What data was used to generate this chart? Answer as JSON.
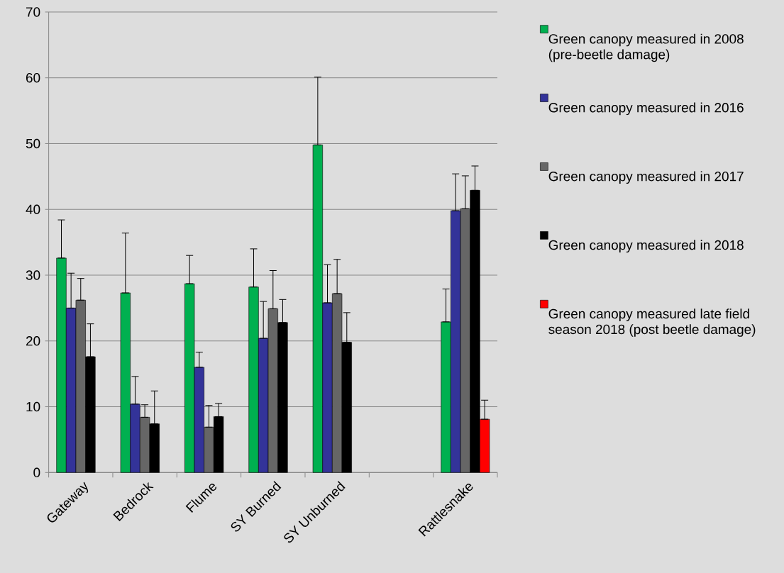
{
  "chart_data": {
    "type": "bar",
    "categories": [
      "Gateway",
      "Bedrock",
      "Flume",
      "SY Burned",
      "SY Unburned",
      null,
      "Rattlesnake"
    ],
    "series": [
      {
        "name": "Green canopy measured in 2008 (pre-beetle damage)",
        "color": "#00b050",
        "values": [
          32.6,
          27.3,
          28.7,
          28.2,
          49.8,
          null,
          22.9
        ],
        "errors": [
          [
            32.6,
            38.4
          ],
          [
            27.3,
            36.4
          ],
          [
            28.7,
            33.0
          ],
          [
            28.2,
            34.0
          ],
          [
            49.8,
            60.1
          ],
          null,
          [
            22.9,
            27.9
          ]
        ]
      },
      {
        "name": "Green canopy measured in 2016",
        "color": "#333399",
        "values": [
          25.0,
          10.4,
          16.0,
          20.4,
          25.8,
          null,
          39.8
        ],
        "errors": [
          [
            25.0,
            30.3
          ],
          [
            10.4,
            14.6
          ],
          [
            16.0,
            18.3
          ],
          [
            20.4,
            26.0
          ],
          [
            25.8,
            31.6
          ],
          null,
          [
            39.8,
            45.4
          ]
        ]
      },
      {
        "name": "Green canopy measured in 2017",
        "color": "#666666",
        "values": [
          26.2,
          8.4,
          6.9,
          24.9,
          27.2,
          null,
          40.1
        ],
        "errors": [
          [
            26.2,
            29.5
          ],
          [
            8.4,
            10.3
          ],
          [
            6.9,
            10.2
          ],
          [
            24.9,
            30.7
          ],
          [
            27.2,
            32.4
          ],
          null,
          [
            40.1,
            45.1
          ]
        ]
      },
      {
        "name": "Green canopy measured in 2018",
        "color": "#000000",
        "values": [
          17.6,
          7.4,
          8.5,
          22.8,
          19.8,
          null,
          42.9
        ],
        "errors": [
          [
            17.6,
            22.6
          ],
          [
            7.4,
            12.4
          ],
          [
            8.5,
            10.5
          ],
          [
            22.8,
            26.3
          ],
          [
            19.8,
            24.3
          ],
          null,
          [
            42.9,
            46.6
          ]
        ]
      },
      {
        "name": "Green canopy measured late field season 2018 (post beetle damage)",
        "color": "#ff0000",
        "values": [
          null,
          null,
          null,
          null,
          null,
          null,
          8.1
        ],
        "errors": [
          null,
          null,
          null,
          null,
          null,
          null,
          [
            8.1,
            11.0
          ]
        ]
      }
    ],
    "ylim": [
      0,
      70
    ],
    "yticks": [
      0,
      10,
      20,
      30,
      40,
      50,
      60,
      70
    ],
    "grid": "y",
    "legend": "right"
  }
}
